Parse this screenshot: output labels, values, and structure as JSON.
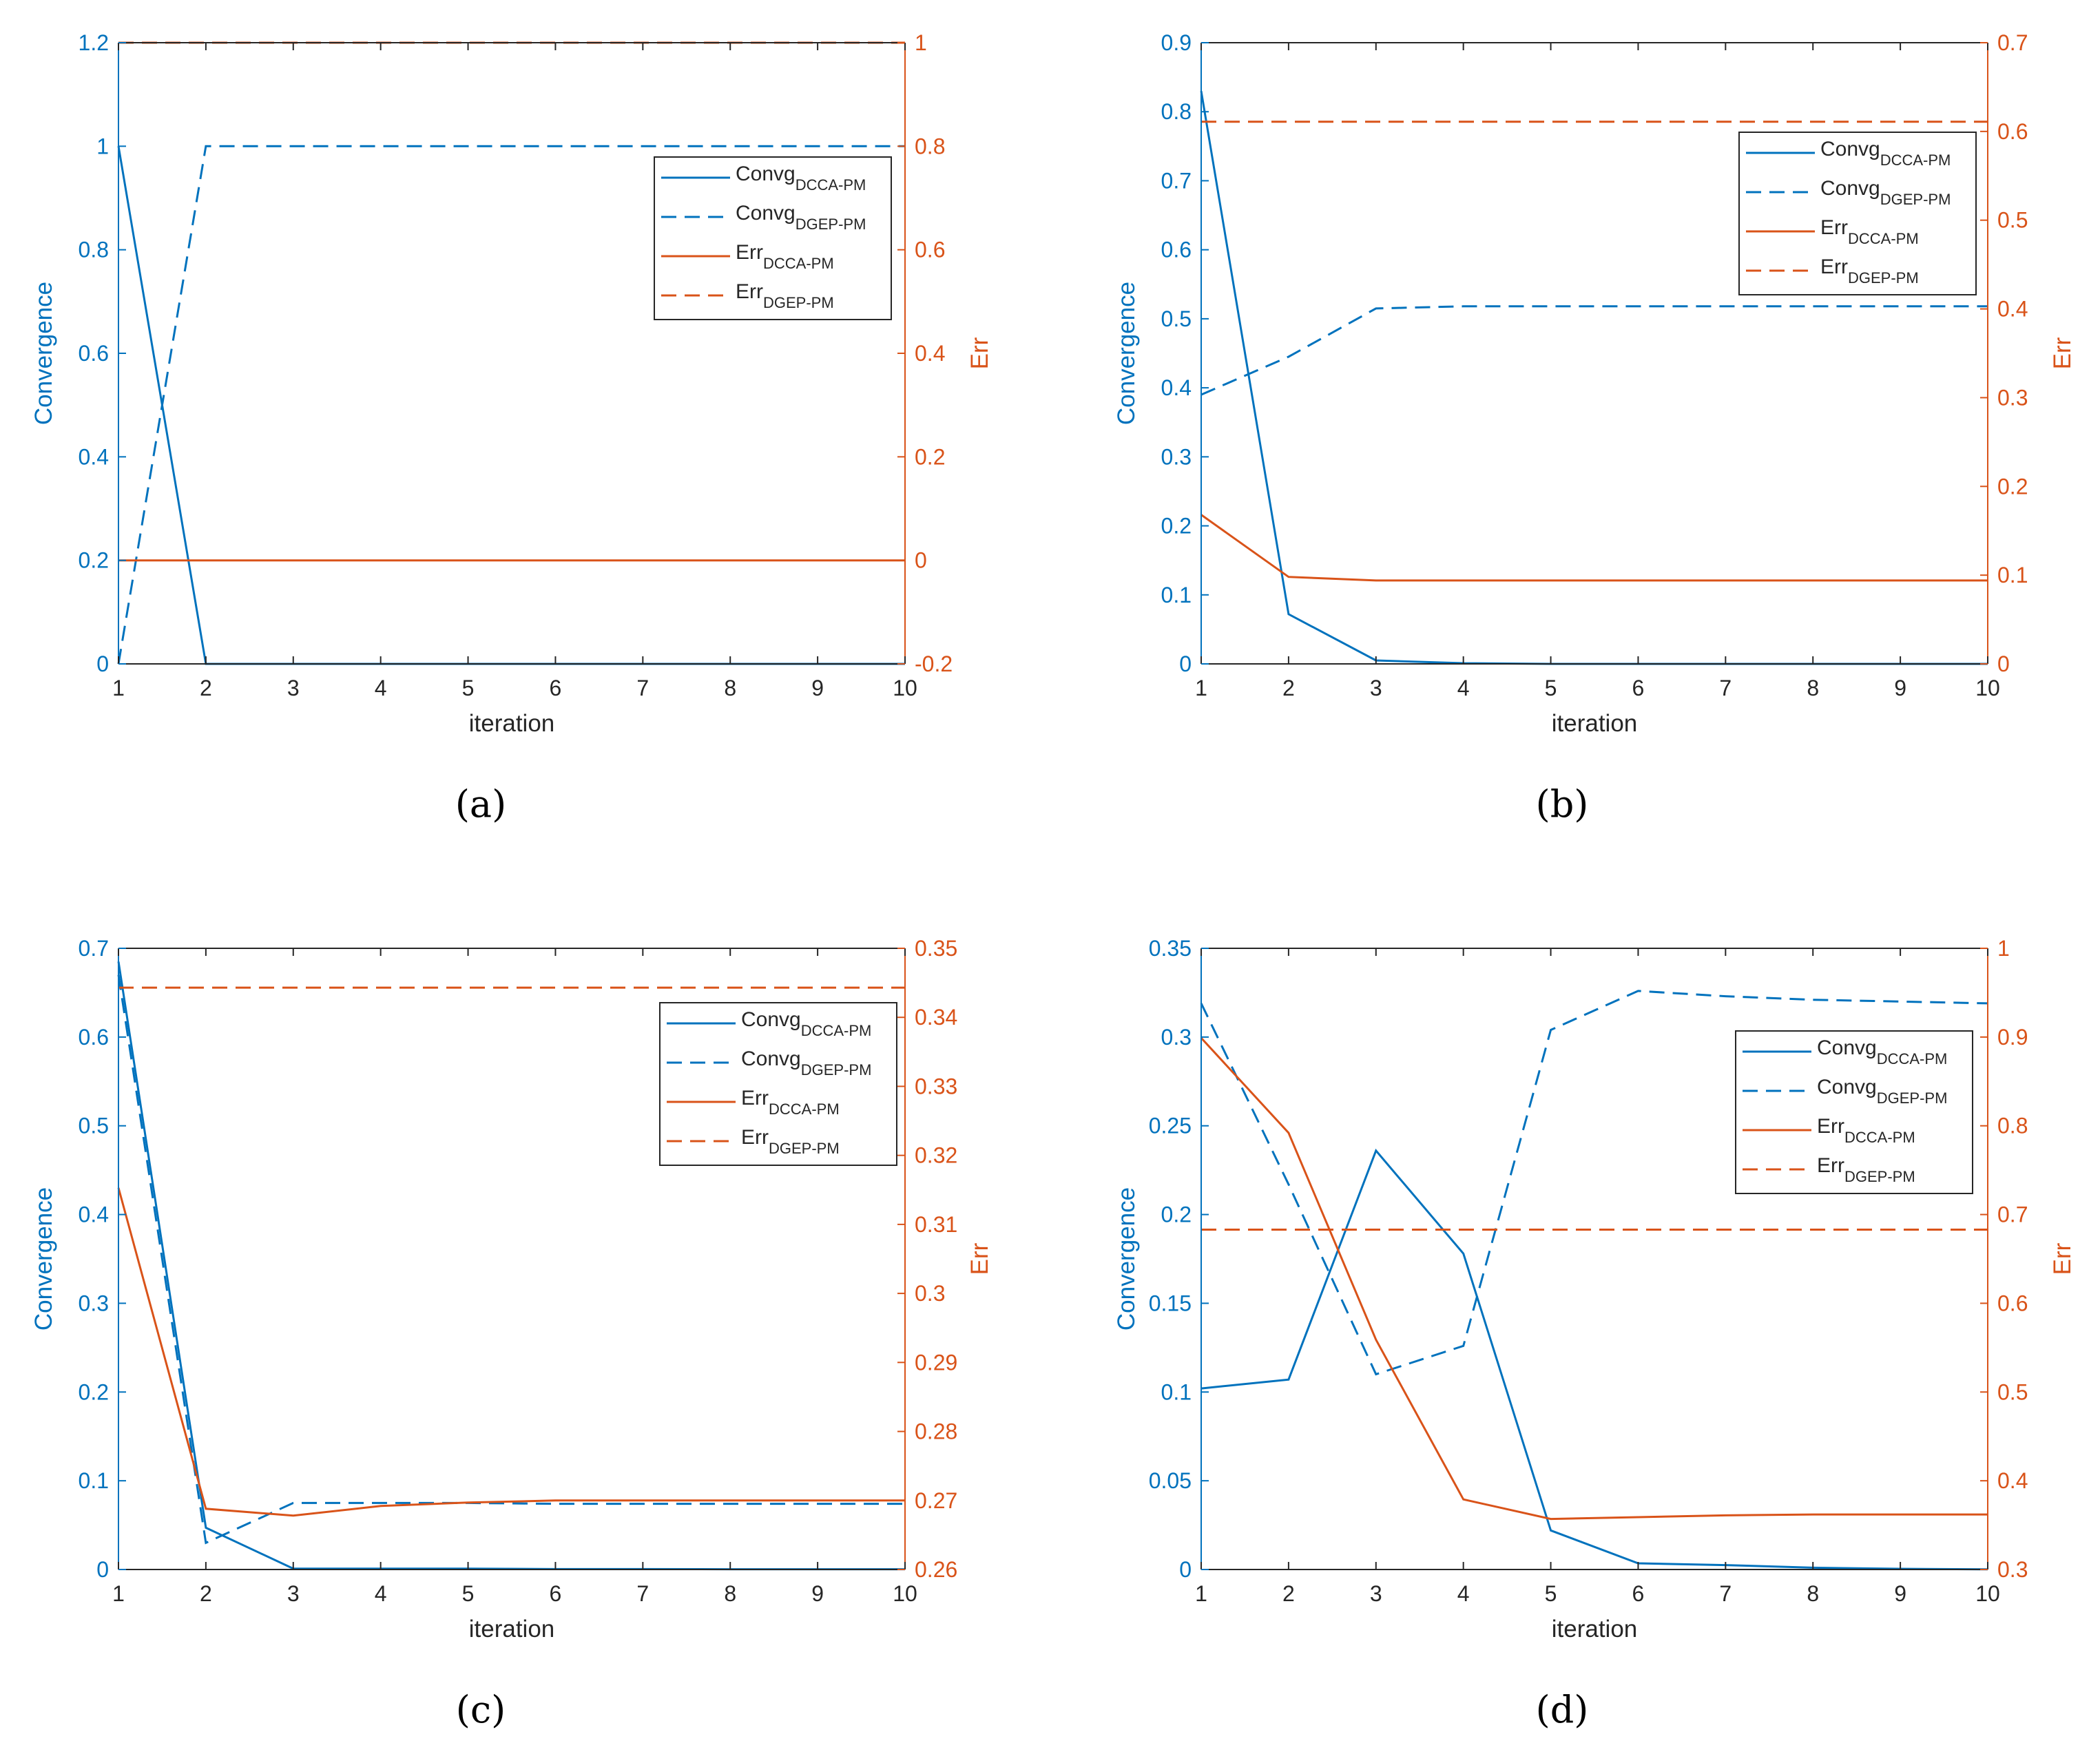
{
  "figure": {
    "captions": {
      "a": "(a)",
      "b": "(b)",
      "c": "(c)",
      "d": "(d)"
    }
  },
  "colors": {
    "blue": "#0072BD",
    "orange": "#D95319",
    "axis": "#262626"
  },
  "chart_data": [
    {
      "id": "a",
      "type": "line",
      "xlabel": "iteration",
      "ylabel_left": "Convergence",
      "ylabel_right": "Err",
      "x": [
        1,
        2,
        3,
        4,
        5,
        6,
        7,
        8,
        9,
        10
      ],
      "xlim": [
        1,
        10
      ],
      "xticks": [
        "1",
        "2",
        "3",
        "4",
        "5",
        "6",
        "7",
        "8",
        "9",
        "10"
      ],
      "ylim_left": [
        0,
        1.2
      ],
      "yticks_left": [
        "0",
        "0.2",
        "0.4",
        "0.6",
        "0.8",
        "1",
        "1.2"
      ],
      "ylim_right": [
        -0.2,
        1
      ],
      "yticks_right": [
        "-0.2",
        "0",
        "0.2",
        "0.4",
        "0.6",
        "0.8",
        "1"
      ],
      "legend_position": "upper-right",
      "series": [
        {
          "name": "Convg",
          "sub": "DCCA-PM",
          "axis": "left",
          "style": "solid",
          "color": "#0072BD",
          "values": [
            1,
            0,
            0,
            0,
            0,
            0,
            0,
            0,
            0,
            0
          ]
        },
        {
          "name": "Convg",
          "sub": "DGEP-PM",
          "axis": "left",
          "style": "dashed",
          "color": "#0072BD",
          "values": [
            0,
            1,
            1,
            1,
            1,
            1,
            1,
            1,
            1,
            1
          ]
        },
        {
          "name": "Err",
          "sub": "DCCA-PM",
          "axis": "right",
          "style": "solid",
          "color": "#D95319",
          "values": [
            0,
            0,
            0,
            0,
            0,
            0,
            0,
            0,
            0,
            0
          ]
        },
        {
          "name": "Err",
          "sub": "DGEP-PM",
          "axis": "right",
          "style": "dashed",
          "color": "#D95319",
          "values": [
            1,
            1,
            1,
            1,
            1,
            1,
            1,
            1,
            1,
            1
          ]
        }
      ]
    },
    {
      "id": "b",
      "type": "line",
      "xlabel": "iteration",
      "ylabel_left": "Convergence",
      "ylabel_right": "Err",
      "x": [
        1,
        2,
        3,
        4,
        5,
        6,
        7,
        8,
        9,
        10
      ],
      "xlim": [
        1,
        10
      ],
      "xticks": [
        "1",
        "2",
        "3",
        "4",
        "5",
        "6",
        "7",
        "8",
        "9",
        "10"
      ],
      "ylim_left": [
        0,
        0.9
      ],
      "yticks_left": [
        "0",
        "0.1",
        "0.2",
        "0.3",
        "0.4",
        "0.5",
        "0.6",
        "0.7",
        "0.8",
        "0.9"
      ],
      "ylim_right": [
        0,
        0.7
      ],
      "yticks_right": [
        "0",
        "0.1",
        "0.2",
        "0.3",
        "0.4",
        "0.5",
        "0.6",
        "0.7"
      ],
      "legend_position": "upper-right",
      "series": [
        {
          "name": "Convg",
          "sub": "DCCA-PM",
          "axis": "left",
          "style": "solid",
          "color": "#0072BD",
          "values": [
            0.83,
            0.072,
            0.005,
            0.001,
            0,
            0,
            0,
            0,
            0,
            0
          ]
        },
        {
          "name": "Convg",
          "sub": "DGEP-PM",
          "axis": "left",
          "style": "dashed",
          "color": "#0072BD",
          "values": [
            0.39,
            0.445,
            0.515,
            0.518,
            0.518,
            0.518,
            0.518,
            0.518,
            0.518,
            0.518
          ]
        },
        {
          "name": "Err",
          "sub": "DCCA-PM",
          "axis": "right",
          "style": "solid",
          "color": "#D95319",
          "values": [
            0.168,
            0.098,
            0.094,
            0.094,
            0.094,
            0.094,
            0.094,
            0.094,
            0.094,
            0.094
          ]
        },
        {
          "name": "Err",
          "sub": "DGEP-PM",
          "axis": "right",
          "style": "dashed",
          "color": "#D95319",
          "values": [
            0.611,
            0.611,
            0.611,
            0.611,
            0.611,
            0.611,
            0.611,
            0.611,
            0.611,
            0.611
          ]
        }
      ]
    },
    {
      "id": "c",
      "type": "line",
      "xlabel": "iteration",
      "ylabel_left": "Convergence",
      "ylabel_right": "Err",
      "x": [
        1,
        2,
        3,
        4,
        5,
        6,
        7,
        8,
        9,
        10
      ],
      "xlim": [
        1,
        10
      ],
      "xticks": [
        "1",
        "2",
        "3",
        "4",
        "5",
        "6",
        "7",
        "8",
        "9",
        "10"
      ],
      "ylim_left": [
        0,
        0.7
      ],
      "yticks_left": [
        "0",
        "0.1",
        "0.2",
        "0.3",
        "0.4",
        "0.5",
        "0.6",
        "0.7"
      ],
      "ylim_right": [
        0.26,
        0.35
      ],
      "yticks_right": [
        "0.26",
        "0.27",
        "0.28",
        "0.29",
        "0.3",
        "0.31",
        "0.32",
        "0.33",
        "0.34",
        "0.35"
      ],
      "legend_position": "upper-right",
      "series": [
        {
          "name": "Convg",
          "sub": "DCCA-PM",
          "axis": "left",
          "style": "solid",
          "color": "#0072BD",
          "values": [
            0.685,
            0.047,
            0.001,
            0.001,
            0.001,
            0.0005,
            0.0005,
            0.0003,
            0.0003,
            0.0003
          ]
        },
        {
          "name": "Convg",
          "sub": "DGEP-PM",
          "axis": "left",
          "style": "dashed",
          "color": "#0072BD",
          "values": [
            0.67,
            0.03,
            0.075,
            0.075,
            0.075,
            0.074,
            0.074,
            0.074,
            0.074,
            0.074
          ]
        },
        {
          "name": "Err",
          "sub": "DCCA-PM",
          "axis": "right",
          "style": "solid",
          "color": "#D95319",
          "values": [
            0.3153,
            0.2688,
            0.2678,
            0.2692,
            0.2697,
            0.27,
            0.27,
            0.27,
            0.27,
            0.27
          ]
        },
        {
          "name": "Err",
          "sub": "DGEP-PM",
          "axis": "right",
          "style": "dashed",
          "color": "#D95319",
          "values": [
            0.3443,
            0.3443,
            0.3443,
            0.3443,
            0.3443,
            0.3443,
            0.3443,
            0.3443,
            0.3443,
            0.3443
          ]
        }
      ]
    },
    {
      "id": "d",
      "type": "line",
      "xlabel": "iteration",
      "ylabel_left": "Convergence",
      "ylabel_right": "Err",
      "x": [
        1,
        2,
        3,
        4,
        5,
        6,
        7,
        8,
        9,
        10
      ],
      "xlim": [
        1,
        10
      ],
      "xticks": [
        "1",
        "2",
        "3",
        "4",
        "5",
        "6",
        "7",
        "8",
        "9",
        "10"
      ],
      "ylim_left": [
        0,
        0.35
      ],
      "yticks_left": [
        "0",
        "0.05",
        "0.1",
        "0.15",
        "0.2",
        "0.25",
        "0.3",
        "0.35"
      ],
      "ylim_right": [
        0.3,
        1
      ],
      "yticks_right": [
        "0.3",
        "0.4",
        "0.5",
        "0.6",
        "0.7",
        "0.8",
        "0.9",
        "1"
      ],
      "legend_position": "upper-right",
      "series": [
        {
          "name": "Convg",
          "sub": "DCCA-PM",
          "axis": "left",
          "style": "solid",
          "color": "#0072BD",
          "values": [
            0.102,
            0.107,
            0.236,
            0.178,
            0.022,
            0.0035,
            0.0025,
            0.001,
            0.0004,
            0.0001
          ]
        },
        {
          "name": "Convg",
          "sub": "DGEP-PM",
          "axis": "left",
          "style": "dashed",
          "color": "#0072BD",
          "values": [
            0.319,
            0.217,
            0.11,
            0.126,
            0.304,
            0.326,
            0.323,
            0.321,
            0.32,
            0.319
          ]
        },
        {
          "name": "Err",
          "sub": "DCCA-PM",
          "axis": "right",
          "style": "solid",
          "color": "#D95319",
          "values": [
            0.899,
            0.792,
            0.559,
            0.379,
            0.357,
            0.359,
            0.361,
            0.362,
            0.362,
            0.362
          ]
        },
        {
          "name": "Err",
          "sub": "DGEP-PM",
          "axis": "right",
          "style": "dashed",
          "color": "#D95319",
          "values": [
            0.683,
            0.683,
            0.683,
            0.683,
            0.683,
            0.683,
            0.683,
            0.683,
            0.683,
            0.683
          ]
        }
      ]
    }
  ]
}
